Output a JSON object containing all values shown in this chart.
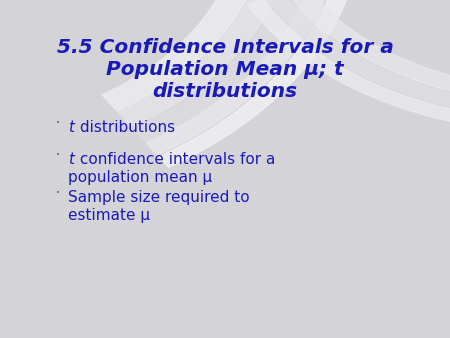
{
  "title_line1": "5.5 Confidence Intervals for a",
  "title_line2": "Population Mean μ; t",
  "title_line3": "distributions",
  "title_color": "#1a1ab8",
  "bullet_color": "#1a1ab8",
  "bg_color": "#d4d4d8",
  "arc_colors": [
    "#e8e8ea",
    "#dcdce0",
    "#e2e2e6",
    "#f0f0f2",
    "#e6e6ea"
  ],
  "title_fontsize": 14.5,
  "bullet_fontsize": 11,
  "bullet_dot_color": "#666666"
}
